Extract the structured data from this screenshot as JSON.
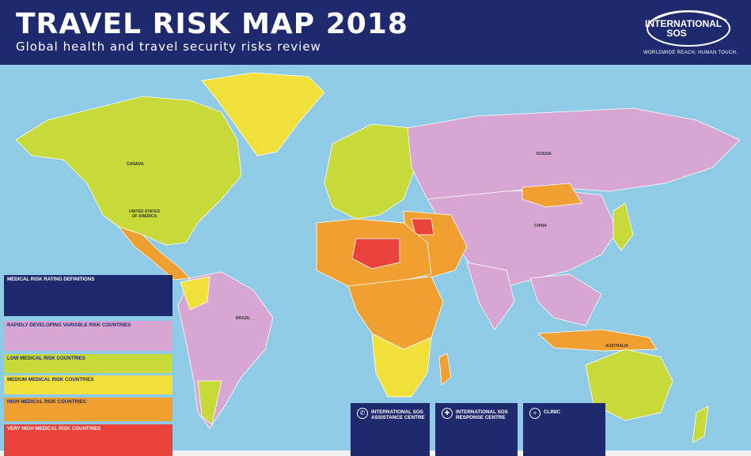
{
  "header": {
    "title": "TRAVEL RISK MAP 2018",
    "subtitle": "Global health and travel security risks review",
    "logo_name": "INTERNATIONAL SOS",
    "logo_tagline": "WORLDWIDE REACH. HUMAN TOUCH."
  },
  "map_labels": {
    "canada": "CANADA",
    "usa": "UNITED STATES OF AMERICA",
    "russia": "RUSSIA",
    "china": "CHINA",
    "brazil": "BRAZIL",
    "australia": "AUSTRALIA"
  },
  "legend": {
    "medical_risk_definitions": "MEDICAL RISK RATING DEFINITIONS",
    "rapidly_developing": "RAPIDLY DEVELOPING VARIABLE RISK COUNTRIES",
    "low": "LOW MEDICAL RISK COUNTRIES",
    "medium": "MEDIUM MEDICAL RISK COUNTRIES",
    "high": "HIGH MEDICAL RISK COUNTRIES",
    "very_high": "VERY HIGH MEDICAL RISK COUNTRIES"
  },
  "info_boxes": {
    "assistance": "INTERNATIONAL SOS ASSISTANCE CENTRE",
    "response": "INTERNATIONAL SOS RESPONSE CENTRE",
    "clinic": "CLINIC"
  },
  "colors": {
    "ocean": "#8fcbe6",
    "header": "#1f2a6e",
    "low": "#c8d93a",
    "medium": "#f2e03a",
    "high": "#f0a030",
    "very_high": "#e8423a",
    "variable": "#d7a6d2"
  }
}
